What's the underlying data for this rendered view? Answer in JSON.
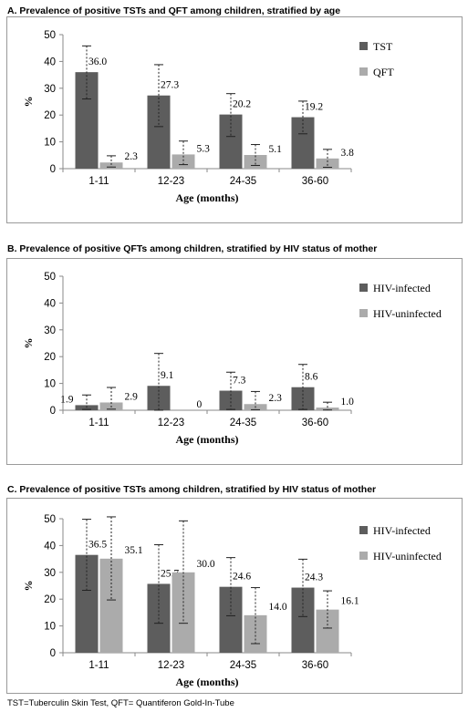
{
  "footnote": "TST=Tuberculin Skin Test, QFT= Quantiferon Gold-In-Tube",
  "colors": {
    "series_dark": "#5d5d5d",
    "series_light": "#ababab",
    "frame": "#9a9a9a"
  },
  "chart_data": [
    {
      "type": "bar",
      "title": "A.  Prevalence of positive TSTs and QFT among children, stratified by age",
      "xlabel": "Age (months)",
      "ylabel": "%",
      "ylim": [
        0,
        50
      ],
      "yticks": [
        "0",
        "10",
        "20",
        "30",
        "40",
        "50"
      ],
      "categories": [
        "1-11",
        "12-23",
        "24-35",
        "36-60"
      ],
      "legend_position": "right",
      "series": [
        {
          "name": "TST",
          "values": [
            36.0,
            27.3,
            20.2,
            19.2
          ],
          "labels": [
            "36.0",
            "27.3",
            "20.2",
            "19.2"
          ],
          "ci_low": [
            26.0,
            15.7,
            12.0,
            13.0
          ],
          "ci_high": [
            45.8,
            38.8,
            28.0,
            25.2
          ]
        },
        {
          "name": "QFT",
          "values": [
            2.3,
            5.3,
            5.1,
            3.8
          ],
          "labels": [
            "2.3",
            "5.3",
            "5.1",
            "3.8"
          ],
          "ci_low": [
            0.6,
            1.5,
            1.2,
            0.5
          ],
          "ci_high": [
            4.8,
            10.3,
            9.0,
            7.2
          ]
        }
      ]
    },
    {
      "type": "bar",
      "title": "B.  Prevalence of positive QFTs among children, stratified by HIV status of mother",
      "xlabel": "Age (months)",
      "ylabel": "%",
      "ylim": [
        0,
        50
      ],
      "yticks": [
        "0",
        "10",
        "20",
        "30",
        "40",
        "50"
      ],
      "categories": [
        "1-11",
        "12-23",
        "24-35",
        "36-60"
      ],
      "legend_position": "right",
      "series": [
        {
          "name": "HIV-infected",
          "values": [
            1.9,
            9.1,
            7.3,
            8.6
          ],
          "labels": [
            "1.9",
            "9.1",
            "7.3",
            "8.6"
          ],
          "ci_low": [
            0.3,
            0.0,
            0.3,
            0.3
          ],
          "ci_high": [
            5.7,
            21.2,
            14.2,
            17.1
          ]
        },
        {
          "name": "HIV-uninfected",
          "values": [
            2.9,
            0,
            2.3,
            1.0
          ],
          "labels": [
            "2.9",
            "0",
            "2.3",
            "1.0"
          ],
          "ci_low": [
            0.4,
            null,
            0.2,
            0.1
          ],
          "ci_high": [
            8.5,
            null,
            7.0,
            3.0
          ]
        }
      ]
    },
    {
      "type": "bar",
      "title": "C.  Prevalence of positive TSTs among children, stratified by HIV status of mother",
      "xlabel": "Age (months)",
      "ylabel": "%",
      "ylim": [
        0,
        50
      ],
      "yticks": [
        "0",
        "10",
        "20",
        "30",
        "40",
        "50"
      ],
      "categories": [
        "1-11",
        "12-23",
        "24-35",
        "36-60"
      ],
      "legend_position": "right",
      "series": [
        {
          "name": "HIV-infected",
          "values": [
            36.5,
            25.7,
            24.6,
            24.3
          ],
          "labels": [
            "36.5",
            "25.7",
            "24.6",
            "24.3"
          ],
          "ci_low": [
            23.3,
            11.0,
            13.8,
            13.5
          ],
          "ci_high": [
            49.8,
            40.3,
            35.5,
            34.9
          ]
        },
        {
          "name": "HIV-uninfected",
          "values": [
            35.1,
            30.0,
            14.0,
            16.1
          ],
          "labels": [
            "35.1",
            "30.0",
            "14.0",
            "16.1"
          ],
          "ci_low": [
            19.7,
            11.0,
            3.4,
            9.2
          ],
          "ci_high": [
            50.7,
            49.2,
            24.3,
            23.1
          ]
        }
      ]
    }
  ]
}
